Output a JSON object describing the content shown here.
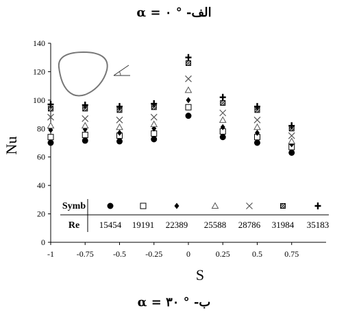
{
  "figure": {
    "caption_top": "α = ۰ °  -الف",
    "caption_bottom": "α = ۳۰ °  -ب"
  },
  "chart_data": {
    "type": "scatter",
    "xlabel": "S",
    "ylabel": "Nu",
    "xlim": [
      -1,
      1
    ],
    "ylim": [
      0,
      140
    ],
    "x_ticks": [
      -1,
      -0.75,
      -0.5,
      -0.25,
      0,
      0.25,
      0.5,
      0.75
    ],
    "x_tick_labels": [
      "-1",
      "-0.75",
      "-0.5",
      "-0.25",
      "0",
      "0.25",
      "0.5",
      "0.75"
    ],
    "y_ticks": [
      0,
      20,
      40,
      60,
      80,
      100,
      120,
      140
    ],
    "y_tick_labels": [
      "0",
      "20",
      "40",
      "60",
      "80",
      "100",
      "120",
      "140"
    ],
    "grid": false,
    "legend_table": {
      "row1_label": "Symb",
      "row2_label": "Re",
      "re_values": [
        "15454",
        "19191",
        "22389",
        "25588",
        "28786",
        "31984",
        "35183"
      ]
    },
    "x": [
      -1,
      -0.75,
      -0.5,
      -0.25,
      0,
      0.25,
      0.5,
      0.75
    ],
    "series": [
      {
        "marker": "filled-circle",
        "values": [
          70,
          71.5,
          71,
          72.5,
          89,
          74,
          70,
          63
        ]
      },
      {
        "marker": "open-square",
        "values": [
          74,
          75.5,
          75,
          76.5,
          95,
          78,
          74,
          67
        ]
      },
      {
        "marker": "filled-diamond",
        "values": [
          79,
          79.5,
          77,
          80,
          100,
          81,
          77,
          69
        ]
      },
      {
        "marker": "open-triangle",
        "values": [
          82,
          82,
          81,
          83,
          107,
          86,
          81,
          71
        ]
      },
      {
        "marker": "x-cross",
        "values": [
          88,
          87,
          86,
          88,
          115,
          91,
          86,
          75
        ]
      },
      {
        "marker": "hatched-square",
        "values": [
          94,
          94,
          93,
          95,
          126,
          98,
          93,
          80
        ]
      },
      {
        "marker": "plus-cross",
        "values": [
          97,
          96.5,
          95.5,
          97.5,
          130,
          102,
          95.5,
          82
        ]
      }
    ]
  }
}
